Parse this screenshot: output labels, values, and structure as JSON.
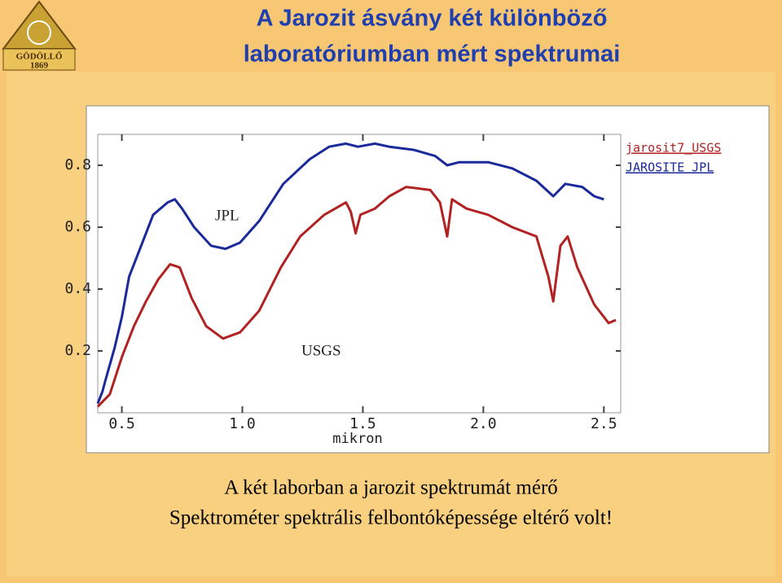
{
  "slide": {
    "title_lines": [
      "A Jarozit ásvány két különböző",
      "laboratóriumban mért spektrumai"
    ],
    "logo": {
      "name": "GÖDÖLLŐ",
      "year": "1869"
    },
    "caption_lines": [
      "A két laborban  a jarozit spektrumát mérő",
      "Spektrométer spektrális felbontóképessége eltérő volt!"
    ]
  },
  "chart_data": {
    "type": "line",
    "x_label": "mikron",
    "xlim": [
      0.4,
      2.57
    ],
    "xticks": [
      0.5,
      {
        "value": 1,
        "label": "1.0"
      },
      1.5,
      {
        "value": 2,
        "label": "2.0"
      },
      2.5
    ],
    "ylim": [
      0,
      0.9
    ],
    "yticks": [
      0.2,
      0.4,
      0.6,
      0.8
    ],
    "annotations": [
      "JPL",
      "USGS"
    ],
    "series": [
      {
        "name": "jarosit7_USGS",
        "color": "#b22222",
        "x": [
          0.4,
          0.45,
          0.5,
          0.55,
          0.6,
          0.65,
          0.7,
          0.74,
          0.79,
          0.85,
          0.92,
          0.99,
          1.07,
          1.16,
          1.24,
          1.34,
          1.43,
          1.45,
          1.47,
          1.49,
          1.55,
          1.61,
          1.68,
          1.78,
          1.82,
          1.85,
          1.87,
          1.93,
          2.02,
          2.12,
          2.22,
          2.27,
          2.29,
          2.32,
          2.35,
          2.39,
          2.46,
          2.52,
          2.55
        ],
        "values": [
          0.02,
          0.06,
          0.18,
          0.28,
          0.36,
          0.43,
          0.48,
          0.47,
          0.37,
          0.28,
          0.24,
          0.26,
          0.33,
          0.47,
          0.57,
          0.64,
          0.68,
          0.65,
          0.58,
          0.64,
          0.66,
          0.7,
          0.73,
          0.72,
          0.68,
          0.57,
          0.69,
          0.66,
          0.64,
          0.6,
          0.57,
          0.44,
          0.36,
          0.54,
          0.57,
          0.47,
          0.35,
          0.29,
          0.3
        ]
      },
      {
        "name": "JAROSITE JPL",
        "color": "#1a2a9a",
        "x": [
          0.4,
          0.42,
          0.43,
          0.47,
          0.5,
          0.53,
          0.58,
          0.63,
          0.69,
          0.72,
          0.75,
          0.8,
          0.87,
          0.93,
          0.99,
          1.07,
          1.17,
          1.28,
          1.36,
          1.43,
          1.48,
          1.55,
          1.61,
          1.71,
          1.8,
          1.85,
          1.9,
          2.02,
          2.12,
          2.22,
          2.29,
          2.34,
          2.41,
          2.46,
          2.5
        ],
        "values": [
          0.03,
          0.07,
          0.1,
          0.21,
          0.31,
          0.44,
          0.54,
          0.64,
          0.68,
          0.69,
          0.66,
          0.6,
          0.54,
          0.53,
          0.55,
          0.62,
          0.74,
          0.82,
          0.86,
          0.87,
          0.86,
          0.87,
          0.86,
          0.85,
          0.83,
          0.8,
          0.81,
          0.81,
          0.79,
          0.75,
          0.7,
          0.74,
          0.73,
          0.7,
          0.69
        ]
      }
    ]
  }
}
